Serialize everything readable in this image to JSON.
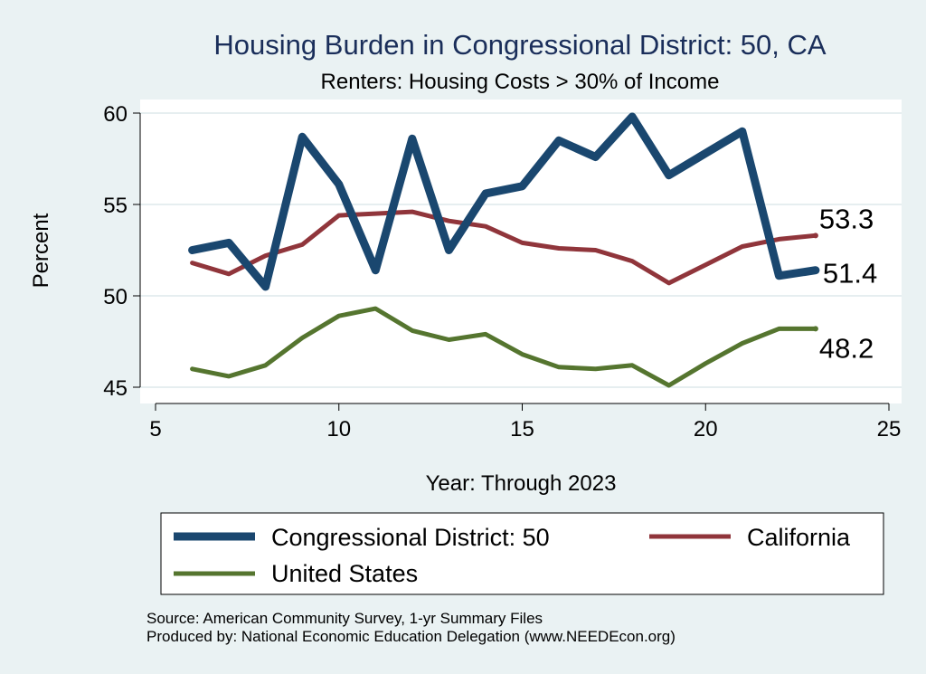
{
  "chart_data": {
    "type": "line",
    "title": "Housing Burden in Congressional District:  50, CA",
    "subtitle": "Renters: Housing Costs > 30% of Income",
    "xlabel": "Year: Through 2023",
    "ylabel": "Percent",
    "xlim": [
      5,
      25
    ],
    "ylim": [
      45,
      60
    ],
    "x_ticks": [
      5,
      10,
      15,
      20,
      25
    ],
    "y_ticks": [
      45,
      50,
      55,
      60
    ],
    "grid": true,
    "series": [
      {
        "name": "Congressional District:  50",
        "color": "#1a476f",
        "x": [
          6,
          7,
          8,
          9,
          10,
          11,
          12,
          13,
          14,
          15,
          16,
          17,
          18,
          19,
          20,
          21,
          22,
          23
        ],
        "values": [
          52.5,
          52.9,
          50.5,
          58.7,
          56.1,
          51.4,
          58.6,
          52.5,
          55.6,
          56.0,
          58.5,
          57.6,
          59.8,
          56.6,
          57.8,
          59.0,
          51.1,
          51.4
        ],
        "end_label": "51.4"
      },
      {
        "name": "California",
        "color": "#90353b",
        "x": [
          6,
          7,
          8,
          9,
          10,
          11,
          12,
          13,
          14,
          15,
          16,
          17,
          18,
          19,
          20,
          21,
          22,
          23
        ],
        "values": [
          51.8,
          51.2,
          52.2,
          52.8,
          54.4,
          54.5,
          54.6,
          54.1,
          53.8,
          52.9,
          52.6,
          52.5,
          51.9,
          50.7,
          51.7,
          52.7,
          53.1,
          53.3
        ],
        "end_label": "53.3"
      },
      {
        "name": "United States",
        "color": "#55752f",
        "x": [
          6,
          7,
          8,
          9,
          10,
          11,
          12,
          13,
          14,
          15,
          16,
          17,
          18,
          19,
          20,
          21,
          22,
          23
        ],
        "values": [
          46.0,
          45.6,
          46.2,
          47.7,
          48.9,
          49.3,
          48.1,
          47.6,
          47.9,
          46.8,
          46.1,
          46.0,
          46.2,
          45.1,
          46.3,
          47.4,
          48.2,
          48.2
        ],
        "end_label": "48.2"
      }
    ],
    "source_lines": [
      "Source: American Community Survey, 1-yr Summary Files",
      "Produced by: National Economic Education Delegation (www.NEEDEcon.org)"
    ]
  }
}
